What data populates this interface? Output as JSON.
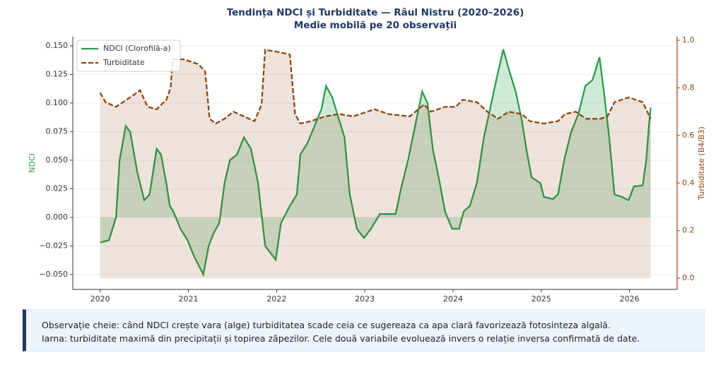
{
  "chart_data": {
    "type": "line",
    "title": "Tendința NDCI și Turbiditate — Râul Nistru (2020–2026)",
    "subtitle": "Medie mobilă pe 20 observații",
    "ylabel": "NDCI",
    "y2label": "Turbiditate (B4/B3)",
    "xlim": [
      2019.69,
      2026.54
    ],
    "xticks": [
      2020,
      2021,
      2022,
      2023,
      2024,
      2025,
      2026
    ],
    "ylim": [
      -0.063,
      0.158
    ],
    "yticks": [
      {
        "value": -0.05,
        "label": "−0.050"
      },
      {
        "value": -0.025,
        "label": "−0.025"
      },
      {
        "value": 0,
        "label": "0.000"
      },
      {
        "value": 0.025,
        "label": "0.025"
      },
      {
        "value": 0.05,
        "label": "0.050"
      },
      {
        "value": 0.075,
        "label": "0.075"
      },
      {
        "value": 0.1,
        "label": "0.100"
      },
      {
        "value": 0.125,
        "label": "0.125"
      },
      {
        "value": 0.15,
        "label": "0.150"
      }
    ],
    "y2lim": [
      -0.047,
      1.015
    ],
    "y2ticks": [
      {
        "value": 0,
        "label": "0.0"
      },
      {
        "value": 0.2,
        "label": "0.2"
      },
      {
        "value": 0.4,
        "label": "0.4"
      },
      {
        "value": 0.6,
        "label": "0.6"
      },
      {
        "value": 0.8,
        "label": "0.8"
      },
      {
        "value": 1,
        "label": "1.0"
      }
    ],
    "grid": true,
    "legend": "upper left",
    "series": [
      {
        "name": "NDCI (Clorofilă-a)",
        "color": "#2a9d4a",
        "dash": false,
        "x": [
          2020.0,
          2020.1,
          2020.18,
          2020.22,
          2020.29,
          2020.34,
          2020.42,
          2020.5,
          2020.56,
          2020.64,
          2020.69,
          2020.75,
          2020.79,
          2020.83,
          2020.91,
          2020.99,
          2021.07,
          2021.17,
          2021.23,
          2021.28,
          2021.35,
          2021.41,
          2021.47,
          2021.55,
          2021.63,
          2021.71,
          2021.79,
          2021.87,
          2021.99,
          2022.05,
          2022.15,
          2022.23,
          2022.27,
          2022.35,
          2022.43,
          2022.51,
          2022.56,
          2022.63,
          2022.69,
          2022.77,
          2022.83,
          2022.91,
          2022.99,
          2023.07,
          2023.17,
          2023.35,
          2023.41,
          2023.49,
          2023.57,
          2023.65,
          2023.71,
          2023.77,
          2023.85,
          2023.91,
          2023.99,
          2024.07,
          2024.12,
          2024.19,
          2024.27,
          2024.35,
          2024.42,
          2024.49,
          2024.57,
          2024.63,
          2024.71,
          2024.78,
          2024.83,
          2024.89,
          2024.99,
          2025.03,
          2025.13,
          2025.19,
          2025.26,
          2025.34,
          2025.42,
          2025.5,
          2025.58,
          2025.66,
          2025.71,
          2025.77,
          2025.83,
          2025.91,
          2025.99,
          2026.05,
          2026.15,
          2026.19,
          2026.22,
          2026.24
        ],
        "values": [
          -0.022,
          -0.02,
          0.0,
          0.05,
          0.08,
          0.075,
          0.04,
          0.015,
          0.02,
          0.06,
          0.055,
          0.03,
          0.01,
          0.005,
          -0.01,
          -0.02,
          -0.035,
          -0.05,
          -0.025,
          -0.015,
          -0.005,
          0.03,
          0.05,
          0.055,
          0.07,
          0.06,
          0.03,
          -0.025,
          -0.037,
          -0.005,
          0.01,
          0.02,
          0.055,
          0.065,
          0.08,
          0.095,
          0.115,
          0.105,
          0.09,
          0.07,
          0.02,
          -0.01,
          -0.018,
          -0.01,
          0.003,
          0.003,
          0.025,
          0.05,
          0.08,
          0.11,
          0.1,
          0.06,
          0.03,
          0.005,
          -0.01,
          -0.01,
          0.005,
          0.01,
          0.03,
          0.07,
          0.095,
          0.12,
          0.147,
          0.13,
          0.11,
          0.085,
          0.06,
          0.035,
          0.03,
          0.018,
          0.016,
          0.02,
          0.05,
          0.075,
          0.09,
          0.115,
          0.12,
          0.14,
          0.11,
          0.07,
          0.02,
          0.018,
          0.015,
          0.027,
          0.028,
          0.05,
          0.08,
          0.096
        ]
      },
      {
        "name": "Turbiditate",
        "color": "#8b4513",
        "dash": true,
        "axis": "y2",
        "x": [
          2020.0,
          2020.06,
          2020.18,
          2020.26,
          2020.38,
          2020.45,
          2020.54,
          2020.64,
          2020.75,
          2020.8,
          2020.82,
          2020.95,
          2021.11,
          2021.19,
          2021.24,
          2021.31,
          2021.41,
          2021.51,
          2021.63,
          2021.75,
          2021.83,
          2021.87,
          2022.03,
          2022.15,
          2022.21,
          2022.27,
          2022.39,
          2022.55,
          2022.71,
          2022.87,
          2023.11,
          2023.27,
          2023.51,
          2023.67,
          2023.75,
          2023.91,
          2024.03,
          2024.11,
          2024.27,
          2024.39,
          2024.51,
          2024.63,
          2024.78,
          2024.87,
          2025.03,
          2025.19,
          2025.27,
          2025.39,
          2025.51,
          2025.67,
          2025.75,
          2025.83,
          2025.99,
          2026.15,
          2026.24
        ],
        "values": [
          0.78,
          0.74,
          0.72,
          0.74,
          0.77,
          0.79,
          0.72,
          0.71,
          0.75,
          0.8,
          0.92,
          0.92,
          0.9,
          0.87,
          0.67,
          0.65,
          0.67,
          0.7,
          0.68,
          0.66,
          0.73,
          0.96,
          0.95,
          0.94,
          0.69,
          0.65,
          0.66,
          0.68,
          0.69,
          0.68,
          0.71,
          0.69,
          0.68,
          0.73,
          0.7,
          0.72,
          0.72,
          0.75,
          0.74,
          0.7,
          0.67,
          0.7,
          0.69,
          0.66,
          0.65,
          0.66,
          0.69,
          0.7,
          0.67,
          0.67,
          0.68,
          0.74,
          0.76,
          0.74,
          0.67
        ]
      }
    ]
  },
  "note": {
    "lines": [
      "Observație cheie: când NDCI crește vara (alge) turbiditatea scade ceia ce sugereaza ca apa clară favorizează fotosinteza algală.",
      "Iarna: turbiditate maximă din precipitații și topirea zăpezilor. Cele două variabile evoluează invers o relație inversa confirmată de date."
    ]
  }
}
